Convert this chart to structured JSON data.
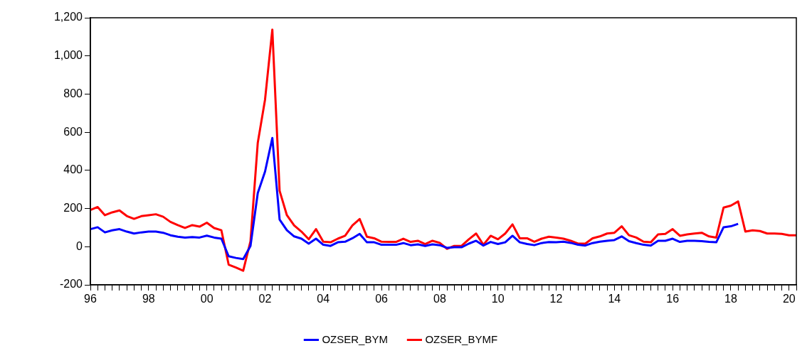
{
  "chart_data": {
    "type": "line",
    "categories": [
      "96",
      null,
      null,
      null,
      null,
      null,
      null,
      null,
      "98",
      null,
      null,
      null,
      null,
      null,
      null,
      null,
      "00",
      null,
      null,
      null,
      null,
      null,
      null,
      null,
      "02",
      null,
      null,
      null,
      null,
      null,
      null,
      null,
      "04",
      null,
      null,
      null,
      null,
      null,
      null,
      null,
      "06",
      null,
      null,
      null,
      null,
      null,
      null,
      null,
      "08",
      null,
      null,
      null,
      null,
      null,
      null,
      null,
      "10",
      null,
      null,
      null,
      null,
      null,
      null,
      null,
      "12",
      null,
      null,
      null,
      null,
      null,
      null,
      null,
      "14",
      null,
      null,
      null,
      null,
      null,
      null,
      null,
      "16",
      null,
      null,
      null,
      null,
      null,
      null,
      null,
      "18",
      null,
      null,
      null,
      null,
      null,
      null,
      null,
      "20",
      null
    ],
    "series": [
      {
        "name": "OZSER_BYM",
        "color": "#0000ff",
        "values": [
          92,
          102,
          75,
          86,
          92,
          79,
          69,
          75,
          79,
          79,
          73,
          60,
          52,
          48,
          50,
          48,
          58,
          48,
          42,
          -50,
          -59,
          -65,
          4,
          281,
          394,
          570,
          142,
          86,
          54,
          42,
          16,
          42,
          10,
          4,
          23,
          26,
          44,
          67,
          23,
          23,
          10,
          10,
          10,
          19,
          8,
          12,
          4,
          12,
          8,
          -6,
          -3,
          -3,
          16,
          31,
          6,
          25,
          14,
          23,
          57,
          23,
          14,
          8,
          19,
          24,
          23,
          26,
          20,
          10,
          6,
          19,
          26,
          31,
          35,
          54,
          29,
          19,
          10,
          6,
          31,
          31,
          42,
          25,
          31,
          31,
          29,
          25,
          23,
          102,
          107,
          120,
          null,
          null,
          null,
          null,
          null,
          null,
          null,
          null
        ]
      },
      {
        "name": "OZSER_BYMF",
        "color": "#ff0000",
        "values": [
          192,
          208,
          165,
          180,
          190,
          161,
          146,
          160,
          165,
          170,
          157,
          130,
          113,
          98,
          113,
          105,
          126,
          98,
          86,
          -94,
          -109,
          -126,
          29,
          545,
          771,
          1138,
          293,
          165,
          111,
          79,
          39,
          92,
          26,
          23,
          42,
          57,
          111,
          145,
          52,
          44,
          26,
          25,
          25,
          42,
          25,
          31,
          14,
          31,
          20,
          -11,
          4,
          4,
          39,
          69,
          10,
          57,
          39,
          69,
          117,
          44,
          44,
          26,
          42,
          52,
          48,
          42,
          31,
          16,
          16,
          44,
          54,
          69,
          73,
          107,
          60,
          48,
          26,
          23,
          64,
          67,
          92,
          57,
          64,
          69,
          73,
          54,
          48,
          205,
          215,
          237,
          79,
          86,
          82,
          69,
          69,
          67,
          60,
          60
        ]
      }
    ],
    "ylim": [
      -200,
      1200
    ],
    "yticks": [
      -200,
      0,
      200,
      400,
      600,
      800,
      {
        "value": 1000,
        "label": "1,000"
      },
      {
        "value": 1200,
        "label": "1,200"
      }
    ],
    "grid": false,
    "legend": "bottom",
    "marker": "none",
    "line_style": "solid"
  }
}
